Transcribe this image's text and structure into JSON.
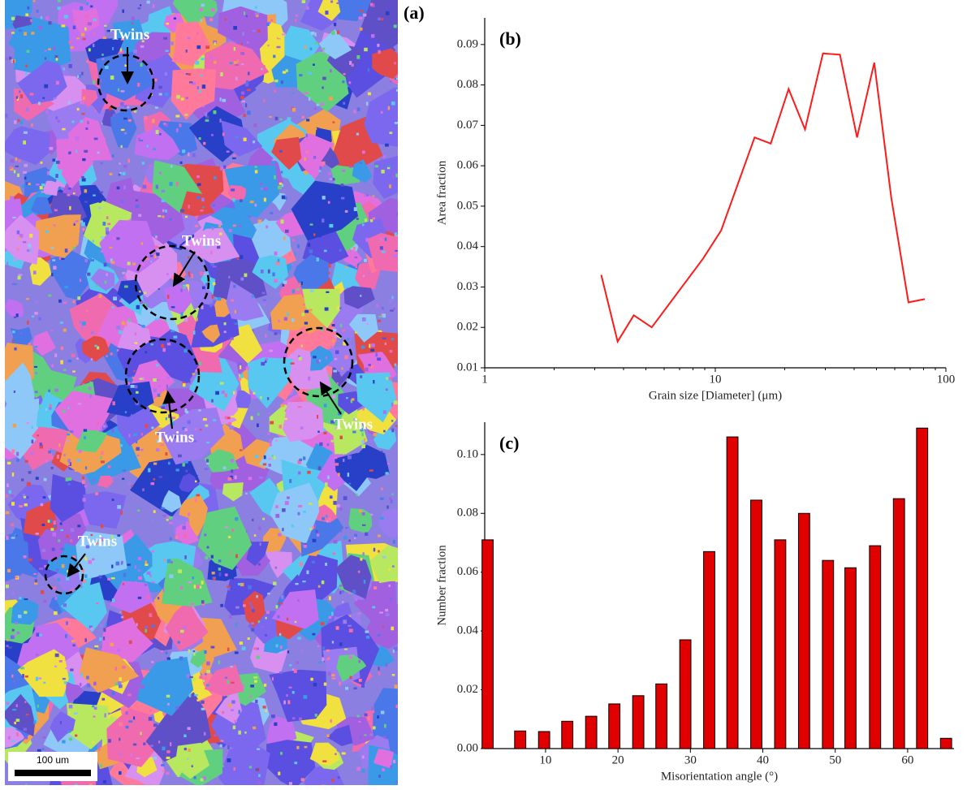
{
  "panel_a": {
    "label": "(a)",
    "annotations": [
      "Twins",
      "Twins",
      "Twins",
      "Twins",
      "Twins"
    ],
    "scale_bar": "100 um"
  },
  "chart_data": [
    {
      "type": "line",
      "panel": "(b)",
      "x_label": "Grain size [Diameter] (μm)",
      "y_label": "Area fraction",
      "x": [
        3.2,
        3.77,
        4.43,
        5.3,
        8.85,
        10.6,
        14.8,
        17.4,
        20.8,
        24.5,
        29.3,
        34.7,
        41.2,
        48.9,
        58,
        68.8,
        81
      ],
      "series": [
        {
          "color": "#ff1a1a",
          "values": [
            0.033,
            0.0165,
            0.023,
            0.02,
            0.037,
            0.044,
            0.067,
            0.0655,
            0.079,
            0.069,
            0.0878,
            0.0875,
            0.067,
            0.0855,
            0.052,
            0.0262,
            0.027
          ]
        }
      ],
      "log_x": true,
      "xlim": [
        1,
        100
      ],
      "xticks": [
        1,
        10,
        100
      ],
      "ylim": [
        0.01,
        0.0966
      ],
      "yticks": [
        0.01,
        0.02,
        0.03,
        0.04,
        0.05,
        0.06,
        0.07,
        0.08,
        0.09
      ]
    },
    {
      "type": "bar",
      "panel": "(c)",
      "x_label": "Misorientation angle (°)",
      "y_label": "Number fraction",
      "x": [
        2,
        6.5,
        9.8,
        13,
        16.3,
        19.5,
        22.8,
        26,
        29.3,
        32.6,
        35.8,
        39.1,
        42.4,
        45.7,
        49,
        52.1,
        55.5,
        58.8,
        62,
        65.3
      ],
      "values": [
        0.071,
        0.006,
        0.0058,
        0.0093,
        0.011,
        0.0152,
        0.018,
        0.022,
        0.037,
        0.067,
        0.106,
        0.0845,
        0.071,
        0.08,
        0.064,
        0.0615,
        0.069,
        0.085,
        0.109,
        0.0035
      ],
      "color": "#e00000",
      "xlim": [
        1.6,
        66.4
      ],
      "xticks": [
        10,
        20,
        30,
        40,
        50,
        60
      ],
      "ylim": [
        0,
        0.111
      ],
      "yticks": [
        {
          "value": 0,
          "label": "0.00"
        },
        {
          "value": 0.02,
          "label": "0.02"
        },
        {
          "value": 0.04,
          "label": "0.04"
        },
        {
          "value": 0.06,
          "label": "0.06"
        },
        {
          "value": 0.08,
          "label": "0.08"
        },
        {
          "value": 0.1,
          "label": "0.10"
        }
      ]
    }
  ]
}
